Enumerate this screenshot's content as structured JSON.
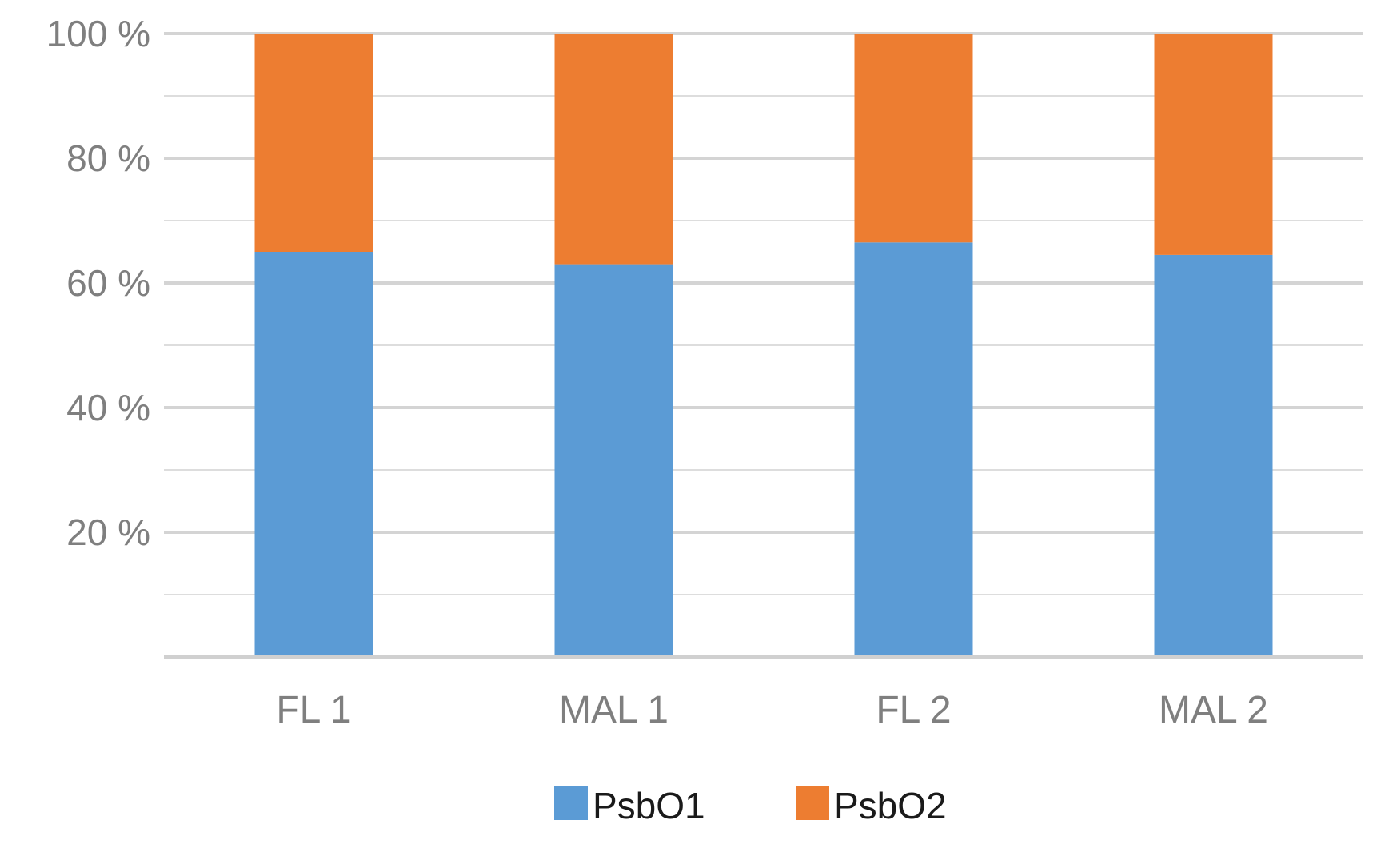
{
  "chart_data": {
    "type": "bar",
    "stacked": true,
    "categories": [
      "FL 1",
      "MAL 1",
      "FL 2",
      "MAL 2"
    ],
    "series": [
      {
        "name": "PsbO1",
        "color": "#5b9bd5",
        "values": [
          65,
          63,
          66.5,
          64.5
        ]
      },
      {
        "name": "PsbO2",
        "color": "#ed7d31",
        "values": [
          35,
          37,
          33.5,
          35.5
        ]
      }
    ],
    "yticks": [
      {
        "value": 20,
        "label": "20 %"
      },
      {
        "value": 40,
        "label": "40 %"
      },
      {
        "value": 60,
        "label": "60 %"
      },
      {
        "value": 80,
        "label": "80 %"
      },
      {
        "value": 100,
        "label": "100 %"
      }
    ],
    "ylim": [
      0,
      100
    ],
    "minor_gridlines": [
      10,
      30,
      50,
      70,
      90
    ],
    "grid": true,
    "legend_position": "bottom"
  }
}
